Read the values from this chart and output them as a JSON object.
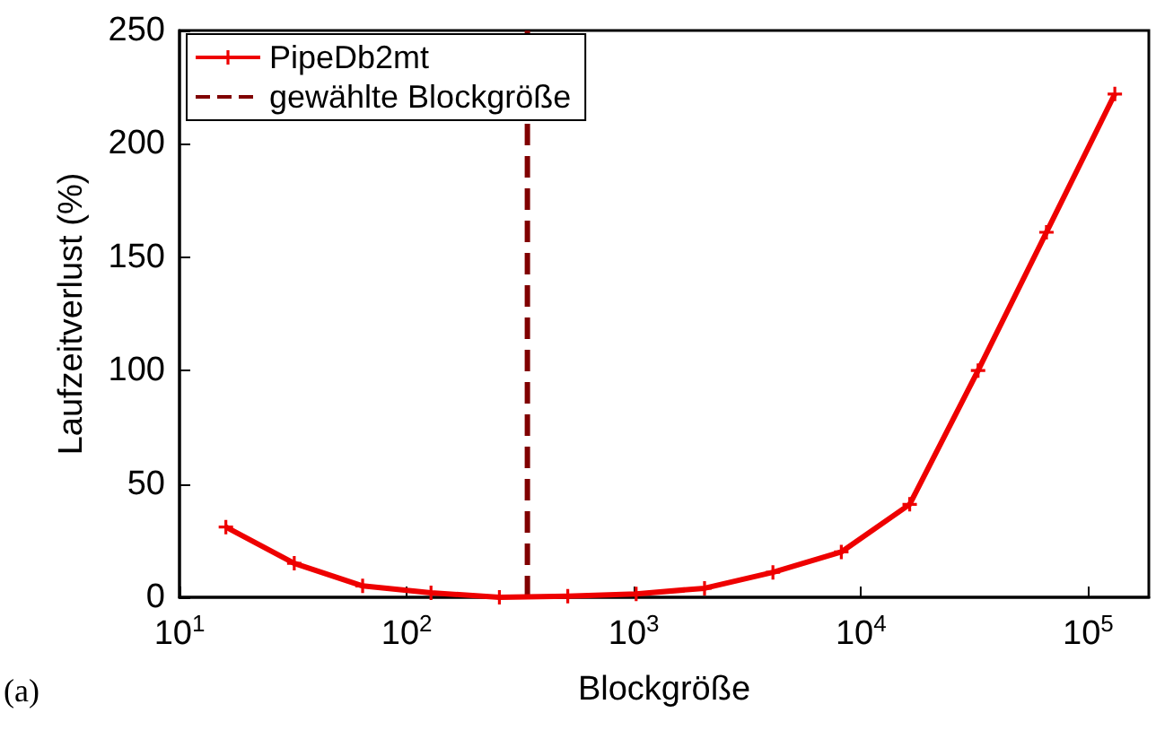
{
  "chart_data": {
    "type": "line",
    "xlabel": "Blockgröße",
    "ylabel": "Laufzeitverlust (%)",
    "annotations": [
      "(a)"
    ],
    "x": [
      16,
      32,
      64,
      128,
      256,
      512,
      1024,
      2048,
      4096,
      8192,
      16384,
      32768,
      65536,
      131072
    ],
    "series": [
      {
        "name": "PipeDb2mt",
        "color": "#ee0000",
        "values": [
          31,
          15,
          5,
          2,
          0,
          0.5,
          1.5,
          4,
          11,
          20,
          41,
          100,
          161,
          222
        ]
      }
    ],
    "log": "x",
    "xlim": [
      10,
      185000
    ],
    "xticks": [
      {
        "value": 10,
        "label": "10$^{1}$"
      },
      {
        "value": 100,
        "label": "10$^{2}$"
      },
      {
        "value": 1000,
        "label": "10$^{3}$"
      },
      {
        "value": 10000,
        "label": "10$^{4}$"
      },
      {
        "value": 100000,
        "label": "10$^{5}$"
      }
    ],
    "ylim": [
      0,
      250
    ],
    "yticks": [
      0,
      50,
      100,
      150,
      200,
      250
    ],
    "ref_lines": [
      {
        "axis": "x",
        "value": 340,
        "label": "gewählte Blockgröße",
        "color": "#800000",
        "line_style": "dashed"
      }
    ],
    "legend": "top left",
    "grid": false,
    "marker": "cross",
    "line_style": "solid"
  }
}
